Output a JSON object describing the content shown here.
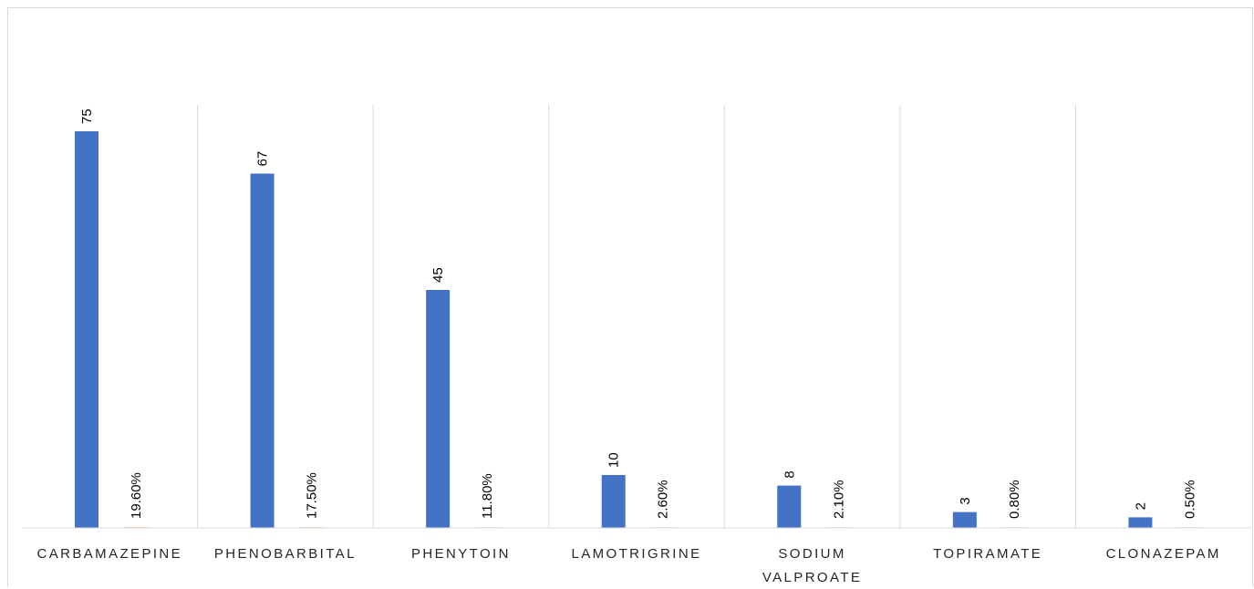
{
  "chart_data": {
    "type": "bar",
    "categories": [
      "CARBAMAZEPINE",
      "PHENOBARBITAL",
      "PHENYTOIN",
      "LAMOTRIGRINE",
      "SODIUM VALPROATE",
      "TOPIRAMATE",
      "CLONAZEPAM"
    ],
    "series": [
      {
        "values": [
          75,
          67,
          45,
          10,
          8,
          3,
          2
        ],
        "labels": [
          "75",
          "67",
          "45",
          "10",
          "8",
          "3",
          "2"
        ],
        "color": "#4472c4"
      },
      {
        "values": [
          0.196,
          0.175,
          0.118,
          0.026,
          0.021,
          0.008,
          0.005
        ],
        "labels": [
          "19.60%",
          "17.50%",
          "11.80%",
          "2.60%",
          "2.10%",
          "0.80%",
          "0.50%"
        ],
        "color": "#ed7d31"
      }
    ],
    "title": "",
    "xlabel": "",
    "ylabel": "",
    "ylim": [
      0,
      80
    ],
    "grid": {
      "vertical": true,
      "horizontal": false
    },
    "legend": "none",
    "colors": {
      "gridline": "#d9d9d9",
      "axis": "#d9d9d9",
      "bar": "#4472c4",
      "percent_bar": "#ed7d31"
    }
  }
}
